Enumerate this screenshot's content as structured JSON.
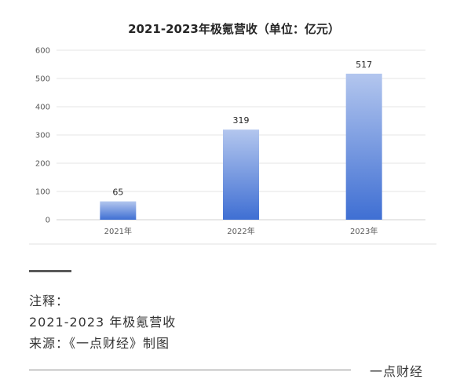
{
  "chart_data": {
    "type": "bar",
    "title": "2021-2023年极氪营收（单位：亿元）",
    "categories": [
      "2021年",
      "2022年",
      "2023年"
    ],
    "values": [
      65,
      319,
      517
    ],
    "data_labels": [
      "65",
      "319",
      "517"
    ],
    "y_ticks": [
      0,
      100,
      200,
      300,
      400,
      500,
      600
    ],
    "ylim": [
      0,
      600
    ],
    "grid": true,
    "legend": "none",
    "colors": {
      "bar_top": "#b3c6ee",
      "bar_bottom": "#3f6fd3",
      "grid": "#e6e6e6",
      "text": "#595959"
    }
  },
  "notes": {
    "heading": "注释：",
    "line1": "2021-2023 年极氪营收",
    "line2": "来源：《一点财经》制图"
  },
  "footer": {
    "brand": "一点财经"
  }
}
